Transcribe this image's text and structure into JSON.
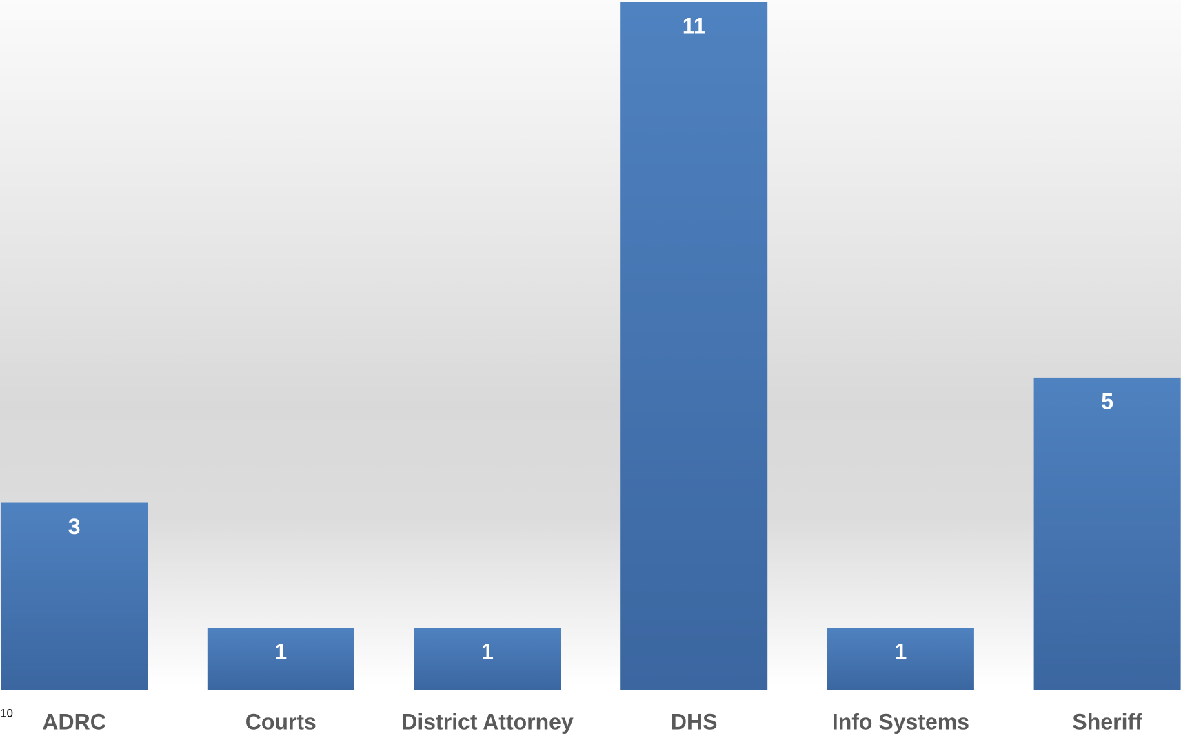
{
  "chart_data": {
    "type": "bar",
    "categories": [
      "ADRC",
      "Courts",
      "District Attorney",
      "DHS",
      "Info Systems",
      "Sheriff"
    ],
    "values": [
      3,
      1,
      1,
      11,
      1,
      5
    ],
    "color": "#4a7bb7",
    "ylim": [
      0,
      11
    ],
    "annotation": "10"
  }
}
